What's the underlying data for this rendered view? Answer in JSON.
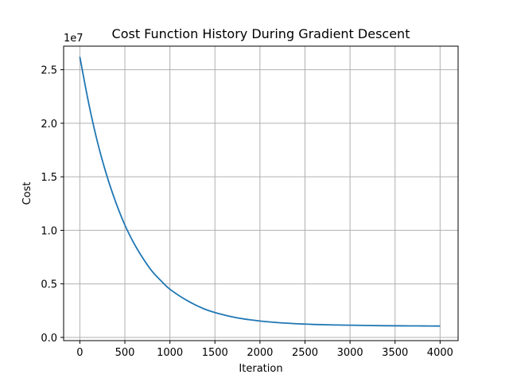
{
  "chart_data": {
    "type": "line",
    "title": "Cost Function History During Gradient Descent",
    "xlabel": "Iteration",
    "ylabel": "Cost",
    "y_multiplier_label": "1e7",
    "xlim": [
      -180,
      4200
    ],
    "ylim": [
      -0.03,
      2.72
    ],
    "y_scale_factor": 10000000,
    "x_ticks": [
      0,
      500,
      1000,
      1500,
      2000,
      2500,
      3000,
      3500,
      4000
    ],
    "x_tick_labels": [
      "0",
      "500",
      "1000",
      "1500",
      "2000",
      "2500",
      "3000",
      "3500",
      "4000"
    ],
    "y_ticks": [
      0.0,
      0.5,
      1.0,
      1.5,
      2.0,
      2.5
    ],
    "y_tick_labels": [
      "0.0",
      "0.5",
      "1.0",
      "1.5",
      "2.0",
      "2.5"
    ],
    "grid": true,
    "line_color": "#1f77b4",
    "series": [
      {
        "x": [
          0,
          100,
          200,
          300,
          400,
          500,
          600,
          700,
          800,
          900,
          1000,
          1200,
          1400,
          1600,
          1800,
          2000,
          2200,
          2400,
          2600,
          2800,
          3000,
          3200,
          3400,
          3600,
          3800,
          4000
        ],
        "y": [
          2.62,
          2.18,
          1.81,
          1.51,
          1.26,
          1.05,
          0.88,
          0.74,
          0.62,
          0.53,
          0.45,
          0.34,
          0.26,
          0.21,
          0.175,
          0.153,
          0.138,
          0.128,
          0.121,
          0.117,
          0.114,
          0.111,
          0.109,
          0.108,
          0.107,
          0.106
        ]
      }
    ]
  }
}
